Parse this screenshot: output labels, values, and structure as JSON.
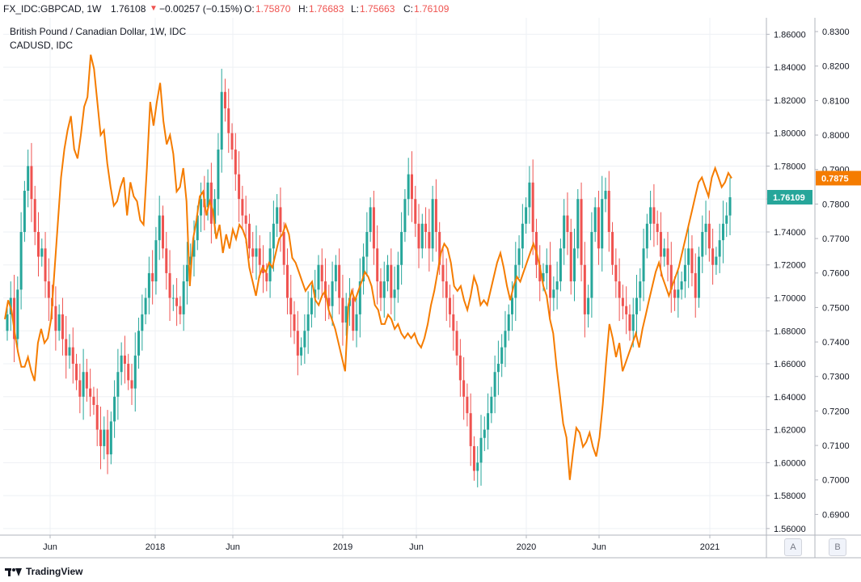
{
  "header": {
    "symbol": "FX_IDC:GBPCAD, 1W",
    "last": "1.76108",
    "arrow": "▼",
    "change": "−0.00257 (−0.15%)",
    "open_label": "O:",
    "open": "1.75870",
    "high_label": "H:",
    "high": "1.76683",
    "low_label": "L:",
    "low": "1.75663",
    "close_label": "C:",
    "close": "1.76109"
  },
  "legend": {
    "main": "British Pound / Canadian Dollar, 1W, IDC",
    "overlay": "CADUSD, IDC"
  },
  "footer": {
    "brand": "TradingView"
  },
  "scale_buttons": [
    "A",
    "B"
  ],
  "colors": {
    "up": "#26a69a",
    "down": "#ef5350",
    "overlay": "#f57c00",
    "grid": "#eef0f4"
  },
  "chart_data": {
    "type": "line",
    "x_ticks": [
      "Jun",
      "2018",
      "Jun",
      "2019",
      "Jun",
      "2020",
      "Jun",
      "2021"
    ],
    "y_left_ticks": [
      "1.86000",
      "1.84000",
      "1.82000",
      "1.80000",
      "1.78000",
      "1.76000",
      "1.74000",
      "1.72000",
      "1.70000",
      "1.68000",
      "1.66000",
      "1.64000",
      "1.62000",
      "1.60000",
      "1.58000",
      "1.56000"
    ],
    "y_right_ticks": [
      "0.8300",
      "0.8200",
      "0.8100",
      "0.8000",
      "0.7900",
      "0.7800",
      "0.7700",
      "0.7600",
      "0.7500",
      "0.7400",
      "0.7300",
      "0.7200",
      "0.7100",
      "0.7000",
      "0.6900"
    ],
    "ylim_left": [
      1.556,
      1.87
    ],
    "ylim_right": [
      0.684,
      0.834
    ],
    "last_price_label": "1.76109",
    "overlay_last_label": "0.7875",
    "series": [
      {
        "role": "GBPCAD weekly close (candles)",
        "values": [
          1.69,
          1.7,
          1.675,
          1.705,
          1.74,
          1.765,
          1.78,
          1.76,
          1.74,
          1.725,
          1.73,
          1.71,
          1.7,
          1.695,
          1.68,
          1.69,
          1.675,
          1.665,
          1.67,
          1.66,
          1.65,
          1.64,
          1.655,
          1.645,
          1.64,
          1.635,
          1.62,
          1.61,
          1.62,
          1.605,
          1.625,
          1.64,
          1.655,
          1.665,
          1.66,
          1.65,
          1.645,
          1.665,
          1.68,
          1.69,
          1.7,
          1.715,
          1.71,
          1.735,
          1.75,
          1.73,
          1.715,
          1.7,
          1.7,
          1.695,
          1.69,
          1.71,
          1.72,
          1.725,
          1.735,
          1.75,
          1.76,
          1.755,
          1.77,
          1.745,
          1.76,
          1.79,
          1.825,
          1.815,
          1.8,
          1.79,
          1.775,
          1.76,
          1.75,
          1.745,
          1.73,
          1.725,
          1.73,
          1.72,
          1.715,
          1.71,
          1.73,
          1.745,
          1.755,
          1.74,
          1.72,
          1.7,
          1.69,
          1.68,
          1.665,
          1.67,
          1.68,
          1.69,
          1.7,
          1.705,
          1.72,
          1.71,
          1.7,
          1.695,
          1.71,
          1.72,
          1.7,
          1.685,
          1.695,
          1.7,
          1.68,
          1.69,
          1.71,
          1.725,
          1.74,
          1.755,
          1.73,
          1.71,
          1.7,
          1.71,
          1.72,
          1.7,
          1.705,
          1.72,
          1.74,
          1.76,
          1.775,
          1.76,
          1.745,
          1.73,
          1.745,
          1.74,
          1.73,
          1.76,
          1.74,
          1.72,
          1.71,
          1.7,
          1.69,
          1.68,
          1.665,
          1.65,
          1.64,
          1.63,
          1.61,
          1.595,
          1.6,
          1.615,
          1.62,
          1.63,
          1.64,
          1.655,
          1.66,
          1.67,
          1.68,
          1.69,
          1.7,
          1.72,
          1.73,
          1.745,
          1.755,
          1.77,
          1.74,
          1.72,
          1.71,
          1.715,
          1.72,
          1.7,
          1.705,
          1.71,
          1.73,
          1.75,
          1.74,
          1.71,
          1.73,
          1.76,
          1.72,
          1.69,
          1.7,
          1.74,
          1.755,
          1.73,
          1.76,
          1.765,
          1.74,
          1.72,
          1.71,
          1.7,
          1.695,
          1.69,
          1.68,
          1.69,
          1.7,
          1.71,
          1.73,
          1.745,
          1.755,
          1.745,
          1.74,
          1.725,
          1.73,
          1.72,
          1.705,
          1.7,
          1.705,
          1.71,
          1.72,
          1.73,
          1.715,
          1.7,
          1.725,
          1.74,
          1.745,
          1.73,
          1.72,
          1.725,
          1.735,
          1.745,
          1.75,
          1.76109
        ]
      },
      {
        "name": "CADUSD, IDC",
        "values": [
          0.7466,
          0.7521,
          0.7493,
          0.7425,
          0.737,
          0.7328,
          0.7328,
          0.7356,
          0.7315,
          0.7287,
          0.7397,
          0.7438,
          0.7397,
          0.7411,
          0.7466,
          0.7603,
          0.774,
          0.7877,
          0.7959,
          0.8014,
          0.8055,
          0.7959,
          0.7932,
          0.8,
          0.8082,
          0.811,
          0.8233,
          0.8192,
          0.8096,
          0.8,
          0.8014,
          0.7918,
          0.7849,
          0.7795,
          0.7808,
          0.7849,
          0.7877,
          0.7767,
          0.7863,
          0.7822,
          0.7808,
          0.7753,
          0.774,
          0.7904,
          0.8096,
          0.8027,
          0.8096,
          0.8151,
          0.8041,
          0.7973,
          0.8,
          0.7945,
          0.7836,
          0.7849,
          0.7904,
          0.7808,
          0.7562,
          0.7699,
          0.7753,
          0.7822,
          0.7836,
          0.7767,
          0.7808,
          0.7781,
          0.7699,
          0.774,
          0.7658,
          0.7712,
          0.7671,
          0.7726,
          0.7699,
          0.774,
          0.7726,
          0.7699,
          0.7616,
          0.7575,
          0.7534,
          0.7589,
          0.7616,
          0.7603,
          0.763,
          0.7616,
          0.7658,
          0.7699,
          0.7712,
          0.774,
          0.7712,
          0.7644,
          0.763,
          0.7603,
          0.7575,
          0.7548,
          0.7562,
          0.7575,
          0.7521,
          0.7507,
          0.7534,
          0.7548,
          0.7493,
          0.7466,
          0.7438,
          0.7397,
          0.7356,
          0.7315,
          0.7507,
          0.7548,
          0.7521,
          0.7548,
          0.7575,
          0.7603,
          0.7589,
          0.7562,
          0.7507,
          0.7493,
          0.7452,
          0.7452,
          0.7479,
          0.7466,
          0.7438,
          0.7452,
          0.7425,
          0.7411,
          0.7425,
          0.7411,
          0.7425,
          0.7397,
          0.7384,
          0.7411,
          0.7452,
          0.7507,
          0.7548,
          0.7603,
          0.7658,
          0.7685,
          0.7671,
          0.763,
          0.7562,
          0.7548,
          0.7562,
          0.7521,
          0.7493,
          0.7534,
          0.7589,
          0.7562,
          0.7507,
          0.7521,
          0.7507,
          0.7548,
          0.7589,
          0.763,
          0.7658,
          0.7616,
          0.7562,
          0.7521,
          0.7562,
          0.7589,
          0.7575,
          0.7603,
          0.763,
          0.7658,
          0.7685,
          0.7658,
          0.7616,
          0.7562,
          0.7534,
          0.7466,
          0.7425,
          0.7329,
          0.7247,
          0.7164,
          0.7123,
          0.7,
          0.7082,
          0.7151,
          0.7137,
          0.7096,
          0.711,
          0.7137,
          0.7096,
          0.7068,
          0.7123,
          0.7219,
          0.7342,
          0.7452,
          0.7411,
          0.7356,
          0.7397,
          0.7315,
          0.7342,
          0.737,
          0.7397,
          0.7425,
          0.7384,
          0.7438,
          0.7479,
          0.7521,
          0.7562,
          0.7603,
          0.763,
          0.7589,
          0.7562,
          0.7534,
          0.7562,
          0.7589,
          0.7616,
          0.7658,
          0.7699,
          0.774,
          0.7781,
          0.7822,
          0.7863,
          0.7877,
          0.7849,
          0.7822,
          0.7877,
          0.7904,
          0.7877,
          0.7849,
          0.7863,
          0.789,
          0.7875
        ]
      }
    ]
  }
}
